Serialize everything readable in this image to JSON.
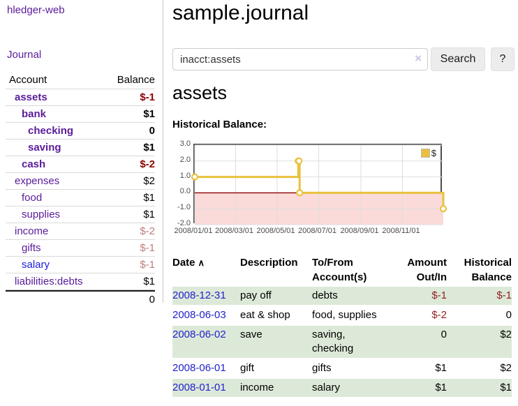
{
  "app": {
    "title": "hledger-web"
  },
  "sidebar": {
    "journal_label": "Journal",
    "accounts_table": {
      "headers": {
        "account": "Account",
        "balance": "Balance"
      },
      "rows": [
        {
          "name": "assets",
          "depth": 1,
          "bold": true,
          "balance": "$-1",
          "balance_style": "strong-neg"
        },
        {
          "name": "bank",
          "depth": 2,
          "bold": true,
          "balance": "$1",
          "balance_style": ""
        },
        {
          "name": "checking",
          "depth": 3,
          "bold": true,
          "balance": "0",
          "balance_style": ""
        },
        {
          "name": "saving",
          "depth": 3,
          "bold": true,
          "balance": "$1",
          "balance_style": ""
        },
        {
          "name": "cash",
          "depth": 2,
          "bold": true,
          "balance": "$-2",
          "balance_style": "strong-neg"
        },
        {
          "name": "expenses",
          "depth": 1,
          "bold": false,
          "balance": "$2",
          "balance_style": ""
        },
        {
          "name": "food",
          "depth": 2,
          "bold": false,
          "balance": "$1",
          "balance_style": ""
        },
        {
          "name": "supplies",
          "depth": 2,
          "bold": false,
          "balance": "$1",
          "balance_style": ""
        },
        {
          "name": "income",
          "depth": 1,
          "bold": false,
          "balance": "$-2",
          "balance_style": "muted-neg"
        },
        {
          "name": "gifts",
          "depth": 2,
          "bold": false,
          "balance": "$-1",
          "balance_style": "muted-neg"
        },
        {
          "name": "salary",
          "depth": 2,
          "bold": false,
          "link_color": "blue",
          "balance": "$-1",
          "balance_style": "muted-neg"
        },
        {
          "name": "liabilities:debts",
          "depth": 1,
          "bold": false,
          "balance": "$1",
          "balance_style": ""
        }
      ],
      "total": "0"
    }
  },
  "main": {
    "title": "sample.journal",
    "search": {
      "value": "inacct:assets",
      "clear_icon": "×",
      "button_label": "Search",
      "help_label": "?"
    },
    "account_heading": "assets",
    "chart_label": "Historical Balance:"
  },
  "chart_data": {
    "type": "line",
    "step": true,
    "title": "Historical Balance:",
    "series": [
      {
        "name": "$",
        "color": "#e9c13d",
        "points": [
          {
            "date": "2008-01-01",
            "value": 1
          },
          {
            "date": "2008-06-01",
            "value": 2
          },
          {
            "date": "2008-06-02",
            "value": 2
          },
          {
            "date": "2008-06-03",
            "value": 0
          },
          {
            "date": "2008-12-31",
            "value": -1
          }
        ]
      }
    ],
    "x_range": [
      "2008-01-01",
      "2008-12-31"
    ],
    "x_ticks": [
      {
        "date": "2008-01-01",
        "label": "2008/01/01"
      },
      {
        "date": "2008-03-01",
        "label": "2008/03/01"
      },
      {
        "date": "2008-05-01",
        "label": "2008/05/01"
      },
      {
        "date": "2008-07-01",
        "label": "2008/07/01"
      },
      {
        "date": "2008-09-01",
        "label": "2008/09/01"
      },
      {
        "date": "2008-11-01",
        "label": "2008/11/01"
      }
    ],
    "y_ticks": [
      3.0,
      2.0,
      1.0,
      0.0,
      -1.0,
      -2.0
    ],
    "ylim": [
      -2.0,
      3.0
    ],
    "grid": true,
    "negative_region_color": "#fbdada",
    "zero_line_color": "#8b0000",
    "legend": {
      "label": "$",
      "position": "top-right"
    }
  },
  "register": {
    "columns": [
      {
        "label": "Date",
        "sort_indicator": "∧",
        "align": "left"
      },
      {
        "label": "Description",
        "align": "left"
      },
      {
        "label": "To/From Account(s)",
        "lines": [
          "To/From",
          "Account(s)"
        ],
        "align": "left"
      },
      {
        "label": "Amount Out/In",
        "lines": [
          "Amount",
          "Out/In"
        ],
        "align": "right"
      },
      {
        "label": "Historical Balance",
        "lines": [
          "Historical",
          "Balance"
        ],
        "align": "right"
      }
    ],
    "rows": [
      {
        "date": "2008-12-31",
        "description": "pay off",
        "accounts": "debts",
        "amount": "$-1",
        "balance": "$-1",
        "amount_negative": true,
        "balance_negative": true,
        "highlight": true
      },
      {
        "date": "2008-06-03",
        "description": "eat & shop",
        "accounts": "food, supplies",
        "amount": "$-2",
        "balance": "0",
        "amount_negative": true,
        "balance_negative": false,
        "highlight": false
      },
      {
        "date": "2008-06-02",
        "description": "save",
        "accounts": "saving, checking",
        "accounts_lines": [
          "saving,",
          "checking"
        ],
        "amount": "0",
        "balance": "$2",
        "amount_negative": false,
        "balance_negative": false,
        "highlight": true
      },
      {
        "date": "2008-06-01",
        "description": "gift",
        "accounts": "gifts",
        "amount": "$1",
        "balance": "$2",
        "amount_negative": false,
        "balance_negative": false,
        "highlight": false
      },
      {
        "date": "2008-01-01",
        "description": "income",
        "accounts": "salary",
        "amount": "$1",
        "balance": "$1",
        "amount_negative": false,
        "balance_negative": false,
        "highlight": true
      }
    ]
  },
  "colors": {
    "link_purple": "#5a1b9a",
    "link_blue": "#1b1be0",
    "date_link_blue": "#2222cc",
    "negative_strong": "#8b0000",
    "negative_muted": "#bf7b7b",
    "negative_table": "#8f1f1f",
    "row_highlight_green": "#dde9d8",
    "series_gold": "#e9c13d",
    "chart_negative_bg": "#fbdada",
    "chart_zero_line": "#8b0000"
  }
}
